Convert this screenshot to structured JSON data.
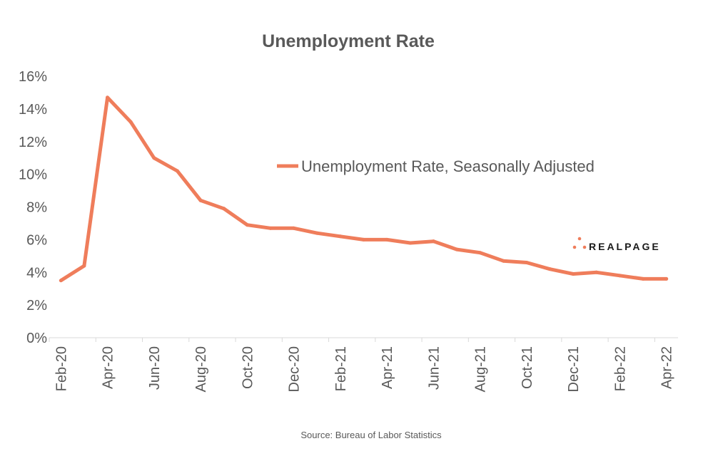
{
  "colors": {
    "series": "#ef7d5b",
    "text": "#595959",
    "axis": "#d9d9d9",
    "logo_text": "#1a1a1a"
  },
  "logo": {
    "text": "REALPAGE",
    "icon": "dot-triangle-logo-icon"
  },
  "source": "Source: Bureau of Labor Statistics",
  "chart_data": {
    "type": "line",
    "title": "Unemployment Rate",
    "xlabel": "",
    "ylabel": "",
    "x": [
      "Feb-20",
      "Mar-20",
      "Apr-20",
      "May-20",
      "Jun-20",
      "Jul-20",
      "Aug-20",
      "Sep-20",
      "Oct-20",
      "Nov-20",
      "Dec-20",
      "Jan-21",
      "Feb-21",
      "Mar-21",
      "Apr-21",
      "May-21",
      "Jun-21",
      "Jul-21",
      "Aug-21",
      "Sep-21",
      "Oct-21",
      "Nov-21",
      "Dec-21",
      "Jan-22",
      "Feb-22",
      "Mar-22",
      "Apr-22"
    ],
    "tick_labels": [
      "Feb-20",
      "Apr-20",
      "Jun-20",
      "Aug-20",
      "Oct-20",
      "Dec-20",
      "Feb-21",
      "Apr-21",
      "Jun-21",
      "Aug-21",
      "Oct-21",
      "Dec-21",
      "Feb-22",
      "Apr-22"
    ],
    "ylim": [
      0,
      16
    ],
    "yticks": [
      0,
      2,
      4,
      6,
      8,
      10,
      12,
      14,
      16
    ],
    "ytick_labels": [
      "0%",
      "2%",
      "4%",
      "6%",
      "8%",
      "10%",
      "12%",
      "14%",
      "16%"
    ],
    "series": [
      {
        "name": "Unemployment Rate, Seasonally Adjusted",
        "values": [
          3.5,
          4.4,
          14.7,
          13.2,
          11.0,
          10.2,
          8.4,
          7.9,
          6.9,
          6.7,
          6.7,
          6.4,
          6.2,
          6.0,
          6.0,
          5.8,
          5.9,
          5.4,
          5.2,
          4.7,
          4.6,
          4.2,
          3.9,
          4.0,
          3.8,
          3.6,
          3.6
        ]
      }
    ],
    "legend": "center-right",
    "grid": false
  }
}
